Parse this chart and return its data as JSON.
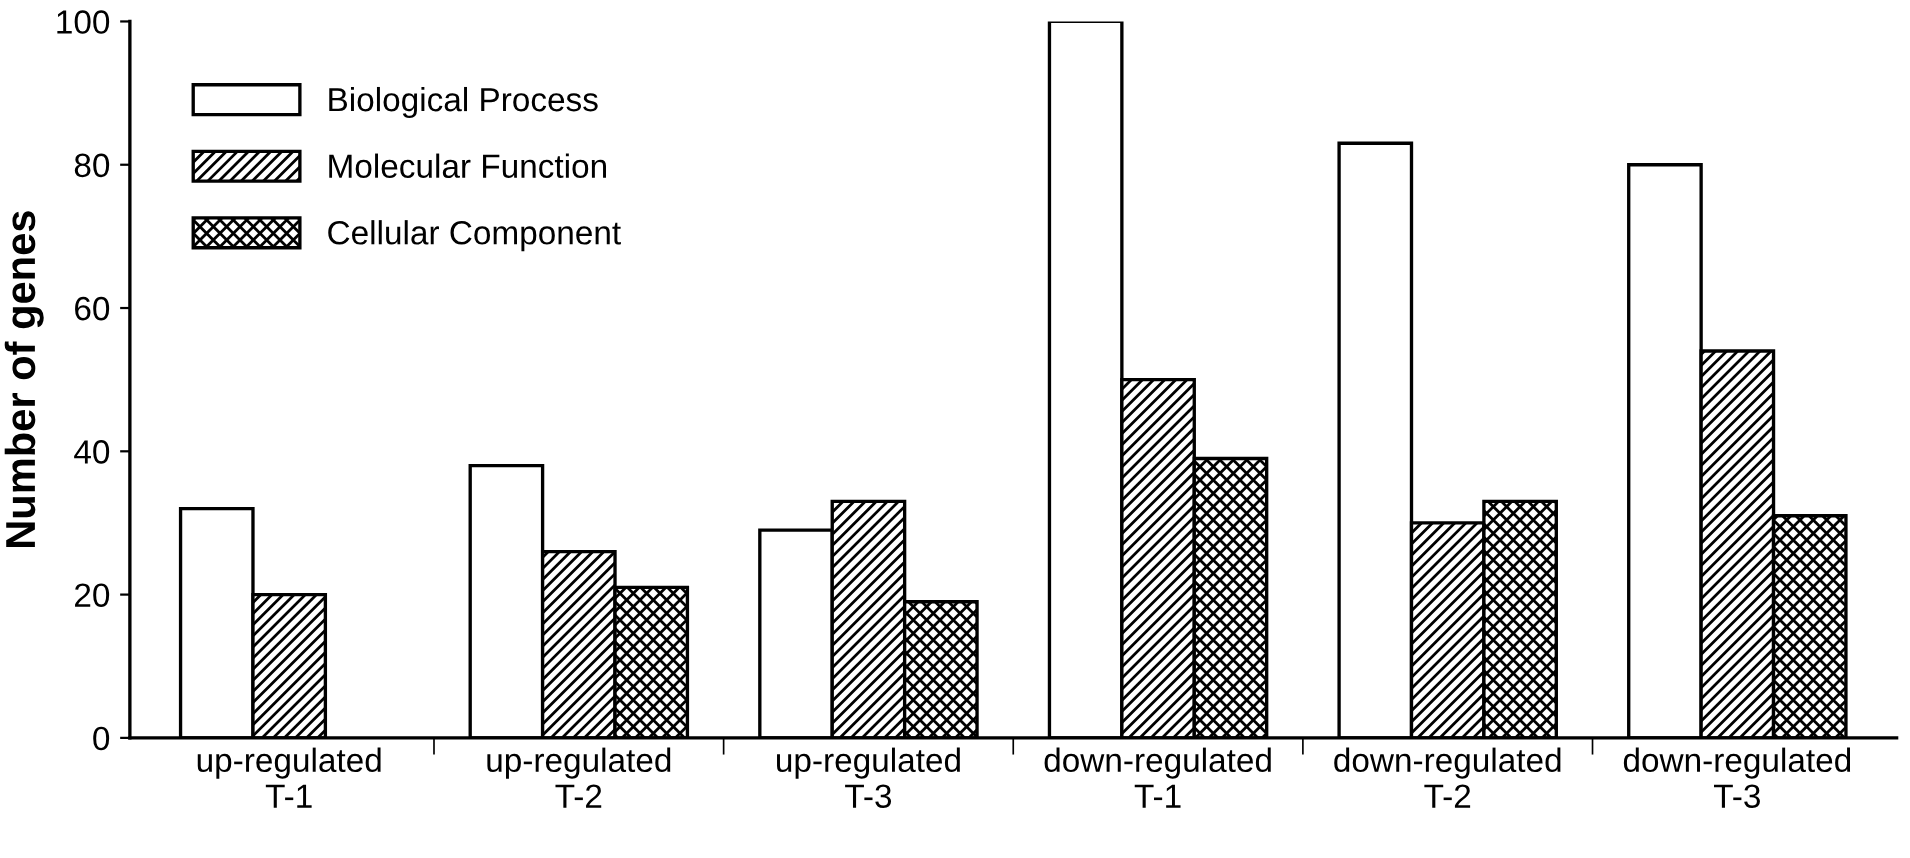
{
  "chart_data": {
    "type": "bar",
    "ylabel": "Number of genes",
    "categories": [
      "up-regulated\nT-1",
      "up-regulated\nT-2",
      "up-regulated\nT-3",
      "down-regulated\nT-1",
      "down-regulated\nT-2",
      "down-regulated\nT-3"
    ],
    "series": [
      {
        "name": "Biological Process",
        "color": "#ffffff",
        "values": [
          32,
          38,
          29,
          100,
          83,
          80
        ]
      },
      {
        "name": "Molecular Function",
        "color": "#000000",
        "values": [
          20,
          26,
          33,
          50,
          30,
          54
        ]
      },
      {
        "name": "Cellular Component",
        "color": "#000000",
        "values": [
          null,
          21,
          19,
          39,
          33,
          31
        ]
      }
    ],
    "ylim": [
      0,
      100
    ],
    "yticks": [
      0,
      20,
      40,
      60,
      80,
      100
    ],
    "grid": false,
    "legend": "top left"
  }
}
